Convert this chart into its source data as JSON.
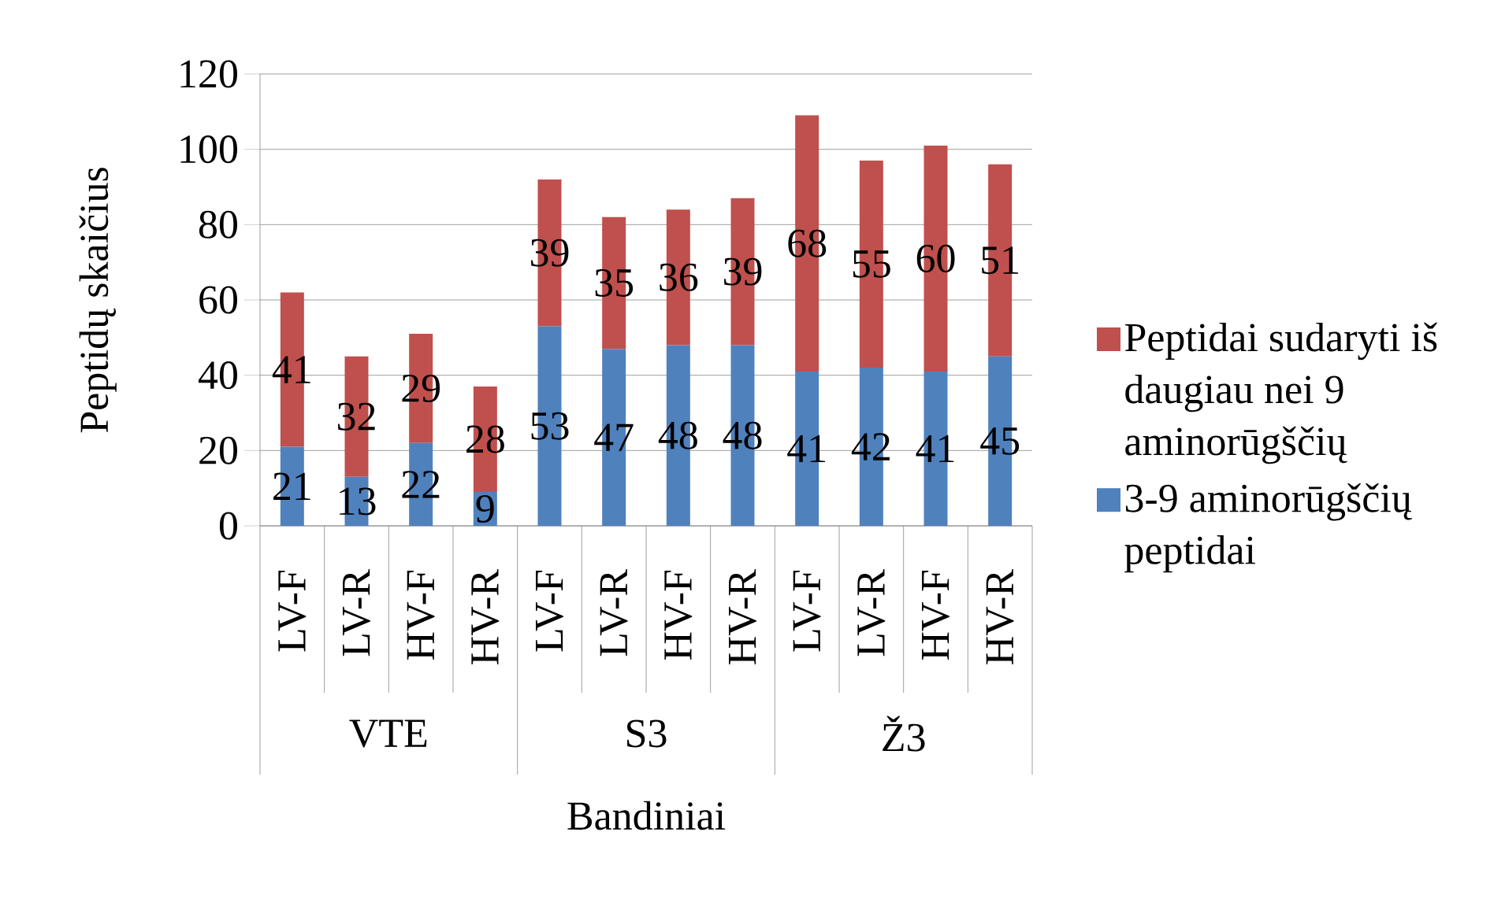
{
  "chart_data": {
    "type": "bar",
    "stacked": true,
    "xlabel": "Bandiniai",
    "ylabel": "Peptidų skaičius",
    "categories": [
      "LV-F",
      "LV-R",
      "HV-F",
      "HV-R",
      "LV-F",
      "LV-R",
      "HV-F",
      "HV-R",
      "LV-F",
      "LV-R",
      "HV-F",
      "HV-R"
    ],
    "annotations": [
      "VTE",
      "S3",
      "Ž3"
    ],
    "series": [
      {
        "name": "3-9 aminorūgščių peptidai",
        "color": "#4f81bd",
        "values": [
          21,
          13,
          22,
          9,
          53,
          47,
          48,
          48,
          41,
          42,
          41,
          45
        ]
      },
      {
        "name": "Peptidai sudaryti iš daugiau nei 9 aminorūgščių",
        "color": "#c0504d",
        "values": [
          41,
          32,
          29,
          28,
          39,
          35,
          36,
          39,
          68,
          55,
          60,
          51
        ]
      }
    ],
    "ylim": [
      0,
      120
    ],
    "yticks": [
      0,
      20,
      40,
      60,
      80,
      100,
      120
    ],
    "grid": "y",
    "legend": "right",
    "data_labels": true
  }
}
